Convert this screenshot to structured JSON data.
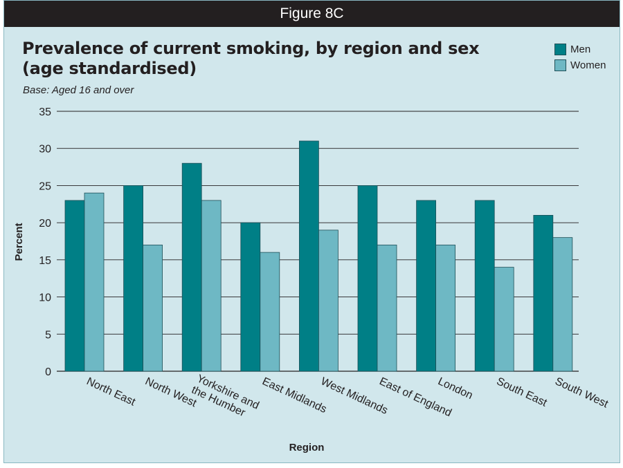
{
  "figure_label": "Figure 8C",
  "colors": {
    "men": "#007f86",
    "women": "#6eb8c4",
    "background": "#d1e7ec",
    "banner": "#231f20"
  },
  "chart_data": {
    "type": "bar",
    "title_line1": "Prevalence of current smoking, by region and sex",
    "title_line2": "(age standardised)",
    "subtitle": "Base: Aged 16 and over",
    "xlabel": "Region",
    "ylabel": "Percent",
    "ylim": [
      0,
      35
    ],
    "yticks": [
      0,
      5,
      10,
      15,
      20,
      25,
      30,
      35
    ],
    "grid": true,
    "legend_position": "top-right",
    "categories": [
      [
        "North East"
      ],
      [
        "North West"
      ],
      [
        "Yorkshire and",
        "the Humber"
      ],
      [
        "East Midlands"
      ],
      [
        "West Midlands"
      ],
      [
        "East of England"
      ],
      [
        "London"
      ],
      [
        "South East"
      ],
      [
        "South West"
      ]
    ],
    "series": [
      {
        "name": "Men",
        "values": [
          23,
          25,
          28,
          20,
          31,
          25,
          23,
          23,
          21
        ]
      },
      {
        "name": "Women",
        "values": [
          24,
          17,
          23,
          16,
          19,
          17,
          17,
          14,
          18
        ]
      }
    ]
  }
}
